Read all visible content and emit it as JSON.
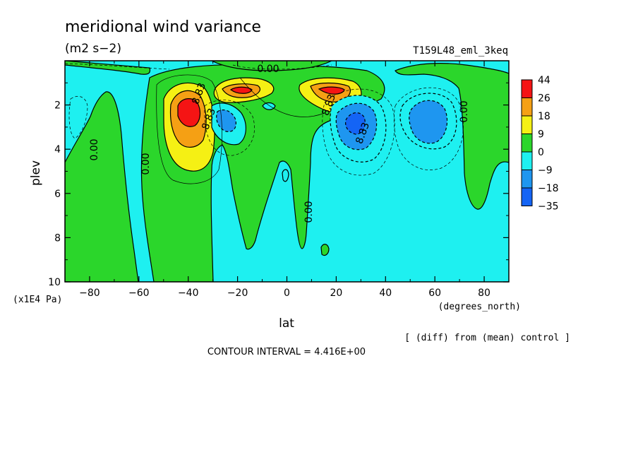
{
  "chart_data": {
    "type": "heatmap",
    "title": "meridional wind variance",
    "units": "(m2 s−2)",
    "run_label": "T159L48_eml_3keq",
    "xlabel": "lat",
    "xunits": "(degrees_north)",
    "ylabel": "plev",
    "yunits": "(x1E4 Pa)",
    "xlim": [
      -90,
      90
    ],
    "ylim": [
      10,
      0
    ],
    "x_ticks": [
      -80,
      -60,
      -40,
      -20,
      0,
      20,
      40,
      60,
      80
    ],
    "y_ticks": [
      2,
      4,
      6,
      8,
      10
    ],
    "colorbar": {
      "labels": [
        "44",
        "26",
        "18",
        "9",
        "0",
        "−9",
        "−18",
        "−35"
      ],
      "colors": [
        "#f51414",
        "#f5a014",
        "#f5f014",
        "#2bd62b",
        "#1ef0f0",
        "#1e96f0",
        "#1464f5"
      ]
    },
    "contour_labels": [
      "0.00",
      "0.00",
      "0.00",
      "0.00",
      "0.00",
      "0.00",
      "8.83",
      "8.83",
      "8.83",
      "8.83"
    ],
    "contour_interval_text": "CONTOUR INTERVAL = 4.416E+00",
    "footnote": "[ (diff) from (mean) control ]",
    "features": [
      {
        "lat": -38,
        "plev": 2.3,
        "value": 44
      },
      {
        "lat": -18,
        "plev": 1.5,
        "value": 44
      },
      {
        "lat": 18,
        "plev": 1.5,
        "value": 44
      },
      {
        "lat": -28,
        "plev": 2.6,
        "value": -18
      },
      {
        "lat": 28,
        "plev": 2.8,
        "value": -35
      },
      {
        "lat": 56,
        "plev": 2.5,
        "value": -18
      }
    ]
  }
}
